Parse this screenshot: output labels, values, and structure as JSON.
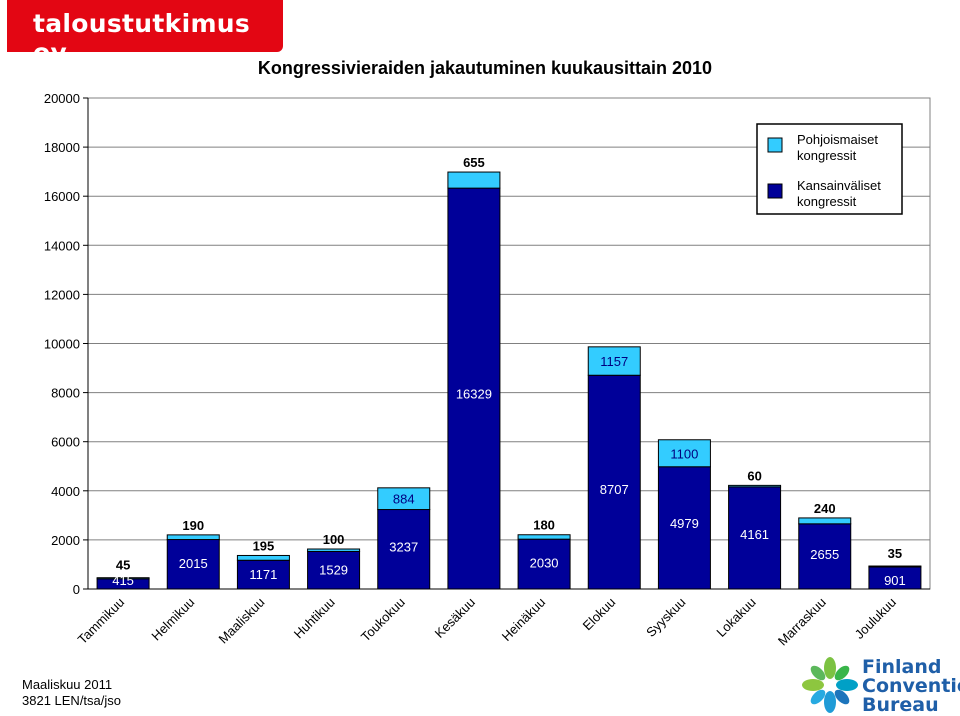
{
  "brand": {
    "name": "taloustutkimus oy",
    "color": "#e30613"
  },
  "footer": {
    "line1": "Maaliskuu 2011",
    "line2": "3821 LEN/tsa/jso"
  },
  "logo": {
    "line1": "Finland",
    "line2": "Convention",
    "line3": "Bureau"
  },
  "chart_data": {
    "type": "bar",
    "stacked": true,
    "title": "Kongressivieraiden jakautuminen kuukausittain 2010",
    "categories": [
      "Tammikuu",
      "Helmikuu",
      "Maaliskuu",
      "Huhtikuu",
      "Toukokuu",
      "Kesäkuu",
      "Heinäkuu",
      "Elokuu",
      "Syyskuu",
      "Lokakuu",
      "Marraskuu",
      "Joulukuu"
    ],
    "series": [
      {
        "name": "Kansainväliset kongressit",
        "color": "#000099",
        "values": [
          415,
          2015,
          1171,
          1529,
          3237,
          16329,
          2030,
          8707,
          4979,
          4161,
          2655,
          901
        ]
      },
      {
        "name": "Pohjoismaiset kongressit",
        "color": "#33ccff",
        "values": [
          45,
          190,
          195,
          100,
          884,
          655,
          180,
          1157,
          1100,
          60,
          240,
          35
        ]
      }
    ],
    "ylim": [
      0,
      20000
    ],
    "yticks": [
      0,
      2000,
      4000,
      6000,
      8000,
      10000,
      12000,
      14000,
      16000,
      18000,
      20000
    ],
    "legend": {
      "position": "top-right",
      "entries": [
        {
          "lines": [
            "Pohjoismaiset",
            "kongressit"
          ],
          "series": 1
        },
        {
          "lines": [
            "Kansainväliset",
            "kongressit"
          ],
          "series": 0
        }
      ]
    }
  }
}
